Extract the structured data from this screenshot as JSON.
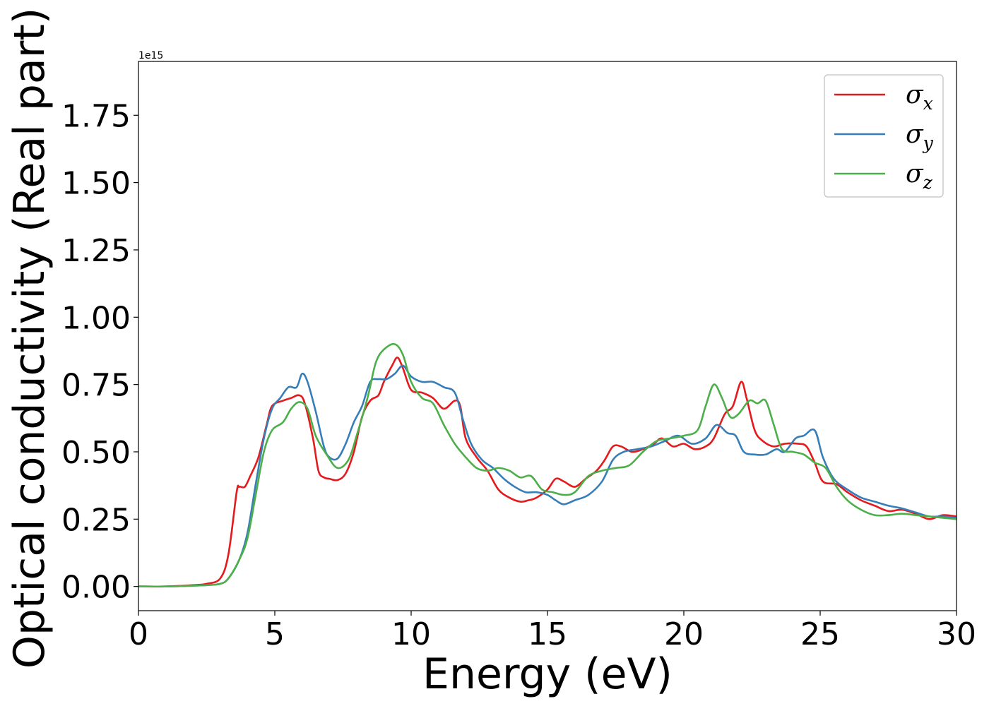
{
  "chart_data": {
    "type": "line",
    "xlabel": "Energy (eV)",
    "ylabel": "Optical conductivity (Real part)",
    "y_offset_text": "1e15",
    "xlim": [
      0,
      30
    ],
    "ylim": [
      -0.09,
      1.95
    ],
    "y_multiplier": "1e15",
    "xticks": [
      0,
      5,
      10,
      15,
      20,
      25,
      30
    ],
    "xtick_labels": [
      "0",
      "5",
      "10",
      "15",
      "20",
      "25",
      "30"
    ],
    "yticks": [
      0.0,
      0.25,
      0.5,
      0.75,
      1.0,
      1.25,
      1.5,
      1.75
    ],
    "ytick_labels": [
      "0.00",
      "0.25",
      "0.50",
      "0.75",
      "1.00",
      "1.25",
      "1.50",
      "1.75"
    ],
    "grid": false,
    "legend_position": "top-right",
    "series": [
      {
        "name": "σ",
        "sub": "x",
        "color": "#e41a1c",
        "points": [
          [
            0,
            0
          ],
          [
            1,
            0
          ],
          [
            2,
            0.005
          ],
          [
            2.5,
            0.01
          ],
          [
            3,
            0.03
          ],
          [
            3.3,
            0.12
          ],
          [
            3.6,
            0.35
          ],
          [
            3.7,
            0.37
          ],
          [
            3.9,
            0.37
          ],
          [
            4.1,
            0.41
          ],
          [
            4.4,
            0.48
          ],
          [
            4.7,
            0.6
          ],
          [
            4.9,
            0.67
          ],
          [
            5.3,
            0.69
          ],
          [
            5.6,
            0.7
          ],
          [
            5.9,
            0.71
          ],
          [
            6.1,
            0.68
          ],
          [
            6.4,
            0.55
          ],
          [
            6.6,
            0.43
          ],
          [
            6.8,
            0.405
          ],
          [
            7.0,
            0.4
          ],
          [
            7.3,
            0.395
          ],
          [
            7.6,
            0.42
          ],
          [
            7.9,
            0.5
          ],
          [
            8.2,
            0.63
          ],
          [
            8.5,
            0.69
          ],
          [
            8.8,
            0.71
          ],
          [
            9.0,
            0.76
          ],
          [
            9.3,
            0.82
          ],
          [
            9.5,
            0.85
          ],
          [
            9.7,
            0.81
          ],
          [
            10.0,
            0.73
          ],
          [
            10.4,
            0.72
          ],
          [
            10.8,
            0.7
          ],
          [
            11.2,
            0.66
          ],
          [
            11.6,
            0.69
          ],
          [
            11.8,
            0.67
          ],
          [
            12.0,
            0.55
          ],
          [
            12.4,
            0.48
          ],
          [
            12.8,
            0.43
          ],
          [
            13.2,
            0.36
          ],
          [
            13.6,
            0.33
          ],
          [
            14.0,
            0.315
          ],
          [
            14.3,
            0.32
          ],
          [
            14.6,
            0.33
          ],
          [
            15.0,
            0.36
          ],
          [
            15.3,
            0.4
          ],
          [
            15.6,
            0.39
          ],
          [
            16.0,
            0.37
          ],
          [
            16.4,
            0.4
          ],
          [
            16.8,
            0.43
          ],
          [
            17.1,
            0.47
          ],
          [
            17.4,
            0.52
          ],
          [
            17.7,
            0.52
          ],
          [
            18.1,
            0.5
          ],
          [
            18.5,
            0.51
          ],
          [
            18.9,
            0.53
          ],
          [
            19.2,
            0.55
          ],
          [
            19.6,
            0.52
          ],
          [
            20.0,
            0.53
          ],
          [
            20.4,
            0.51
          ],
          [
            20.8,
            0.52
          ],
          [
            21.1,
            0.55
          ],
          [
            21.5,
            0.64
          ],
          [
            21.8,
            0.67
          ],
          [
            22.1,
            0.76
          ],
          [
            22.3,
            0.7
          ],
          [
            22.6,
            0.58
          ],
          [
            22.9,
            0.54
          ],
          [
            23.3,
            0.52
          ],
          [
            23.7,
            0.53
          ],
          [
            24.2,
            0.53
          ],
          [
            24.5,
            0.52
          ],
          [
            24.8,
            0.46
          ],
          [
            25.1,
            0.39
          ],
          [
            25.6,
            0.38
          ],
          [
            26.0,
            0.35
          ],
          [
            26.5,
            0.32
          ],
          [
            27.0,
            0.3
          ],
          [
            27.5,
            0.28
          ],
          [
            28.0,
            0.285
          ],
          [
            28.5,
            0.27
          ],
          [
            29.0,
            0.25
          ],
          [
            29.5,
            0.265
          ],
          [
            30.0,
            0.26
          ]
        ]
      },
      {
        "name": "σ",
        "sub": "y",
        "color": "#377eb8",
        "points": [
          [
            0,
            0
          ],
          [
            1,
            0
          ],
          [
            2,
            0.003
          ],
          [
            2.5,
            0.005
          ],
          [
            3,
            0.01
          ],
          [
            3.3,
            0.03
          ],
          [
            3.7,
            0.1
          ],
          [
            4.0,
            0.2
          ],
          [
            4.3,
            0.38
          ],
          [
            4.6,
            0.55
          ],
          [
            4.9,
            0.66
          ],
          [
            5.2,
            0.7
          ],
          [
            5.5,
            0.74
          ],
          [
            5.8,
            0.74
          ],
          [
            6.0,
            0.79
          ],
          [
            6.2,
            0.76
          ],
          [
            6.5,
            0.65
          ],
          [
            6.8,
            0.52
          ],
          [
            7.0,
            0.48
          ],
          [
            7.3,
            0.475
          ],
          [
            7.6,
            0.53
          ],
          [
            7.9,
            0.61
          ],
          [
            8.2,
            0.67
          ],
          [
            8.5,
            0.76
          ],
          [
            8.8,
            0.77
          ],
          [
            9.1,
            0.77
          ],
          [
            9.4,
            0.79
          ],
          [
            9.7,
            0.82
          ],
          [
            10.0,
            0.78
          ],
          [
            10.4,
            0.76
          ],
          [
            10.8,
            0.76
          ],
          [
            11.2,
            0.74
          ],
          [
            11.6,
            0.72
          ],
          [
            11.9,
            0.62
          ],
          [
            12.2,
            0.53
          ],
          [
            12.6,
            0.47
          ],
          [
            13.0,
            0.44
          ],
          [
            13.4,
            0.4
          ],
          [
            13.8,
            0.37
          ],
          [
            14.2,
            0.35
          ],
          [
            14.6,
            0.35
          ],
          [
            15.0,
            0.34
          ],
          [
            15.3,
            0.32
          ],
          [
            15.6,
            0.305
          ],
          [
            16.0,
            0.32
          ],
          [
            16.5,
            0.34
          ],
          [
            17.0,
            0.39
          ],
          [
            17.4,
            0.47
          ],
          [
            17.8,
            0.5
          ],
          [
            18.3,
            0.51
          ],
          [
            18.8,
            0.52
          ],
          [
            19.3,
            0.54
          ],
          [
            19.8,
            0.56
          ],
          [
            20.3,
            0.53
          ],
          [
            20.8,
            0.55
          ],
          [
            21.2,
            0.6
          ],
          [
            21.6,
            0.57
          ],
          [
            21.9,
            0.56
          ],
          [
            22.2,
            0.5
          ],
          [
            22.6,
            0.49
          ],
          [
            23.0,
            0.49
          ],
          [
            23.4,
            0.51
          ],
          [
            23.7,
            0.5
          ],
          [
            24.1,
            0.55
          ],
          [
            24.4,
            0.56
          ],
          [
            24.8,
            0.58
          ],
          [
            25.1,
            0.48
          ],
          [
            25.5,
            0.4
          ],
          [
            26.0,
            0.36
          ],
          [
            26.5,
            0.33
          ],
          [
            27.0,
            0.315
          ],
          [
            27.5,
            0.3
          ],
          [
            28.0,
            0.29
          ],
          [
            28.5,
            0.275
          ],
          [
            29.0,
            0.26
          ],
          [
            29.5,
            0.26
          ],
          [
            30.0,
            0.255
          ]
        ]
      },
      {
        "name": "σ",
        "sub": "z",
        "color": "#4daf4a",
        "points": [
          [
            0,
            0
          ],
          [
            1,
            0
          ],
          [
            2,
            0.003
          ],
          [
            2.5,
            0.005
          ],
          [
            3,
            0.01
          ],
          [
            3.3,
            0.03
          ],
          [
            3.7,
            0.1
          ],
          [
            4.0,
            0.18
          ],
          [
            4.3,
            0.34
          ],
          [
            4.6,
            0.5
          ],
          [
            4.9,
            0.58
          ],
          [
            5.3,
            0.61
          ],
          [
            5.6,
            0.66
          ],
          [
            5.9,
            0.685
          ],
          [
            6.2,
            0.66
          ],
          [
            6.5,
            0.56
          ],
          [
            6.9,
            0.49
          ],
          [
            7.3,
            0.44
          ],
          [
            7.7,
            0.47
          ],
          [
            8.0,
            0.56
          ],
          [
            8.4,
            0.7
          ],
          [
            8.7,
            0.83
          ],
          [
            9.0,
            0.88
          ],
          [
            9.4,
            0.9
          ],
          [
            9.7,
            0.86
          ],
          [
            10.0,
            0.76
          ],
          [
            10.4,
            0.7
          ],
          [
            10.8,
            0.68
          ],
          [
            11.2,
            0.6
          ],
          [
            11.6,
            0.53
          ],
          [
            12.0,
            0.48
          ],
          [
            12.4,
            0.44
          ],
          [
            12.8,
            0.43
          ],
          [
            13.2,
            0.44
          ],
          [
            13.6,
            0.43
          ],
          [
            14.0,
            0.405
          ],
          [
            14.4,
            0.41
          ],
          [
            14.8,
            0.36
          ],
          [
            15.2,
            0.35
          ],
          [
            15.6,
            0.34
          ],
          [
            16.0,
            0.35
          ],
          [
            16.5,
            0.41
          ],
          [
            17.0,
            0.43
          ],
          [
            17.5,
            0.44
          ],
          [
            18.0,
            0.45
          ],
          [
            18.5,
            0.5
          ],
          [
            19.0,
            0.54
          ],
          [
            19.5,
            0.55
          ],
          [
            20.0,
            0.56
          ],
          [
            20.5,
            0.58
          ],
          [
            20.8,
            0.67
          ],
          [
            21.1,
            0.75
          ],
          [
            21.4,
            0.7
          ],
          [
            21.7,
            0.63
          ],
          [
            22.0,
            0.64
          ],
          [
            22.4,
            0.69
          ],
          [
            22.7,
            0.68
          ],
          [
            23.0,
            0.69
          ],
          [
            23.3,
            0.6
          ],
          [
            23.6,
            0.51
          ],
          [
            24.0,
            0.5
          ],
          [
            24.4,
            0.49
          ],
          [
            24.8,
            0.46
          ],
          [
            25.2,
            0.44
          ],
          [
            25.6,
            0.37
          ],
          [
            26.0,
            0.32
          ],
          [
            26.5,
            0.285
          ],
          [
            27.0,
            0.265
          ],
          [
            27.5,
            0.265
          ],
          [
            28.0,
            0.27
          ],
          [
            28.5,
            0.265
          ],
          [
            29.0,
            0.26
          ],
          [
            29.5,
            0.255
          ],
          [
            30.0,
            0.25
          ]
        ]
      }
    ]
  }
}
